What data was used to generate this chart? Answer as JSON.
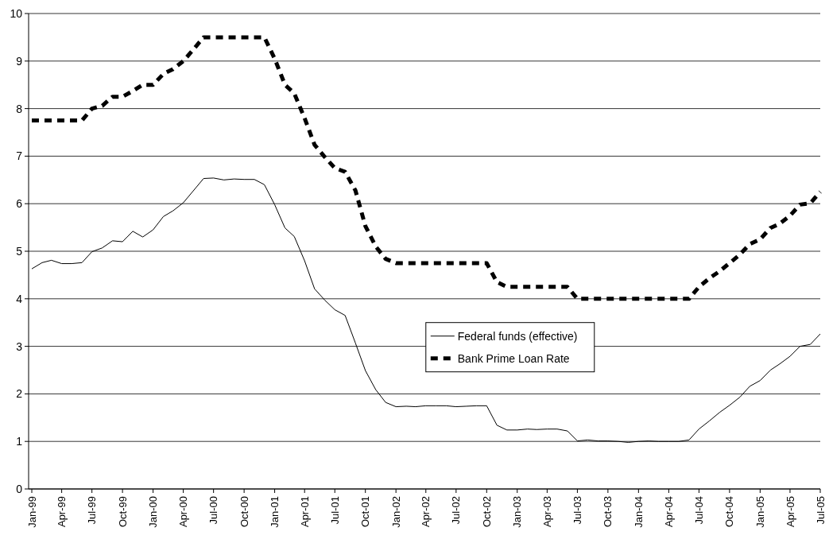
{
  "chart_data": {
    "type": "line",
    "x": [
      "1999-01",
      "1999-02",
      "1999-03",
      "1999-04",
      "1999-05",
      "1999-06",
      "1999-07",
      "1999-08",
      "1999-09",
      "1999-10",
      "1999-11",
      "1999-12",
      "2000-01",
      "2000-02",
      "2000-03",
      "2000-04",
      "2000-05",
      "2000-06",
      "2000-07",
      "2000-08",
      "2000-09",
      "2000-10",
      "2000-11",
      "2000-12",
      "2001-01",
      "2001-02",
      "2001-03",
      "2001-04",
      "2001-05",
      "2001-06",
      "2001-07",
      "2001-08",
      "2001-09",
      "2001-10",
      "2001-11",
      "2001-12",
      "2002-01",
      "2002-02",
      "2002-03",
      "2002-04",
      "2002-05",
      "2002-06",
      "2002-07",
      "2002-08",
      "2002-09",
      "2002-10",
      "2002-11",
      "2002-12",
      "2003-01",
      "2003-02",
      "2003-03",
      "2003-04",
      "2003-05",
      "2003-06",
      "2003-07",
      "2003-08",
      "2003-09",
      "2003-10",
      "2003-11",
      "2003-12",
      "2004-01",
      "2004-02",
      "2004-03",
      "2004-04",
      "2004-05",
      "2004-06",
      "2004-07",
      "2004-08",
      "2004-09",
      "2004-10",
      "2004-11",
      "2004-12",
      "2005-01",
      "2005-02",
      "2005-03",
      "2005-04",
      "2005-05",
      "2005-06",
      "2005-07"
    ],
    "series": [
      {
        "name": "Federal funds (effective)",
        "color": "#000000",
        "line_style": "solid",
        "values": [
          4.63,
          4.76,
          4.81,
          4.74,
          4.74,
          4.76,
          4.99,
          5.07,
          5.22,
          5.2,
          5.42,
          5.3,
          5.45,
          5.73,
          5.85,
          6.02,
          6.27,
          6.53,
          6.54,
          6.5,
          6.52,
          6.51,
          6.51,
          6.4,
          5.98,
          5.49,
          5.31,
          4.8,
          4.21,
          3.97,
          3.77,
          3.65,
          3.07,
          2.49,
          2.09,
          1.82,
          1.73,
          1.74,
          1.73,
          1.75,
          1.75,
          1.75,
          1.73,
          1.74,
          1.75,
          1.75,
          1.34,
          1.24,
          1.24,
          1.26,
          1.25,
          1.26,
          1.26,
          1.22,
          1.01,
          1.03,
          1.01,
          1.01,
          1.0,
          0.98,
          1.0,
          1.01,
          1.0,
          1.0,
          1.0,
          1.03,
          1.26,
          1.43,
          1.61,
          1.76,
          1.93,
          2.16,
          2.28,
          2.5,
          2.63,
          2.79,
          3.0,
          3.04,
          3.26
        ]
      },
      {
        "name": "Bank Prime Loan Rate",
        "color": "#000000",
        "line_style": "dashed",
        "values": [
          7.75,
          7.75,
          7.75,
          7.75,
          7.75,
          7.75,
          8.0,
          8.06,
          8.25,
          8.25,
          8.37,
          8.5,
          8.5,
          8.73,
          8.83,
          9.0,
          9.24,
          9.5,
          9.5,
          9.5,
          9.5,
          9.5,
          9.5,
          9.5,
          9.05,
          8.5,
          8.32,
          7.8,
          7.24,
          6.98,
          6.75,
          6.67,
          6.28,
          5.53,
          5.1,
          4.84,
          4.75,
          4.75,
          4.75,
          4.75,
          4.75,
          4.75,
          4.75,
          4.75,
          4.75,
          4.75,
          4.35,
          4.25,
          4.25,
          4.25,
          4.25,
          4.25,
          4.25,
          4.25,
          4.0,
          4.0,
          4.0,
          4.0,
          4.0,
          4.0,
          4.0,
          4.0,
          4.0,
          4.0,
          4.0,
          4.0,
          4.25,
          4.43,
          4.58,
          4.75,
          4.93,
          5.15,
          5.25,
          5.49,
          5.58,
          5.75,
          5.98,
          6.01,
          6.25
        ]
      }
    ],
    "xlim": [
      "1999-01",
      "2005-07"
    ],
    "xticks": [
      {
        "value": "1999-01",
        "label": "Jan-99"
      },
      {
        "value": "1999-04",
        "label": "Apr-99"
      },
      {
        "value": "1999-07",
        "label": "Jul-99"
      },
      {
        "value": "1999-10",
        "label": "Oct-99"
      },
      {
        "value": "2000-01",
        "label": "Jan-00"
      },
      {
        "value": "2000-04",
        "label": "Apr-00"
      },
      {
        "value": "2000-07",
        "label": "Jul-00"
      },
      {
        "value": "2000-10",
        "label": "Oct-00"
      },
      {
        "value": "2001-01",
        "label": "Jan-01"
      },
      {
        "value": "2001-04",
        "label": "Apr-01"
      },
      {
        "value": "2001-07",
        "label": "Jul-01"
      },
      {
        "value": "2001-10",
        "label": "Oct-01"
      },
      {
        "value": "2002-01",
        "label": "Jan-02"
      },
      {
        "value": "2002-04",
        "label": "Apr-02"
      },
      {
        "value": "2002-07",
        "label": "Jul-02"
      },
      {
        "value": "2002-10",
        "label": "Oct-02"
      },
      {
        "value": "2003-01",
        "label": "Jan-03"
      },
      {
        "value": "2003-04",
        "label": "Apr-03"
      },
      {
        "value": "2003-07",
        "label": "Jul-03"
      },
      {
        "value": "2003-10",
        "label": "Oct-03"
      },
      {
        "value": "2004-01",
        "label": "Jan-04"
      },
      {
        "value": "2004-04",
        "label": "Apr-04"
      },
      {
        "value": "2004-07",
        "label": "Jul-04"
      },
      {
        "value": "2004-10",
        "label": "Oct-04"
      },
      {
        "value": "2005-01",
        "label": "Jan-05"
      },
      {
        "value": "2005-04",
        "label": "Apr-05"
      },
      {
        "value": "2005-07",
        "label": "Jul-05"
      }
    ],
    "ylim": [
      0,
      10
    ],
    "yticks": [
      0,
      1,
      2,
      3,
      4,
      5,
      6,
      7,
      8,
      9,
      10
    ],
    "grid": "y",
    "legend": "center",
    "marker": "none"
  }
}
